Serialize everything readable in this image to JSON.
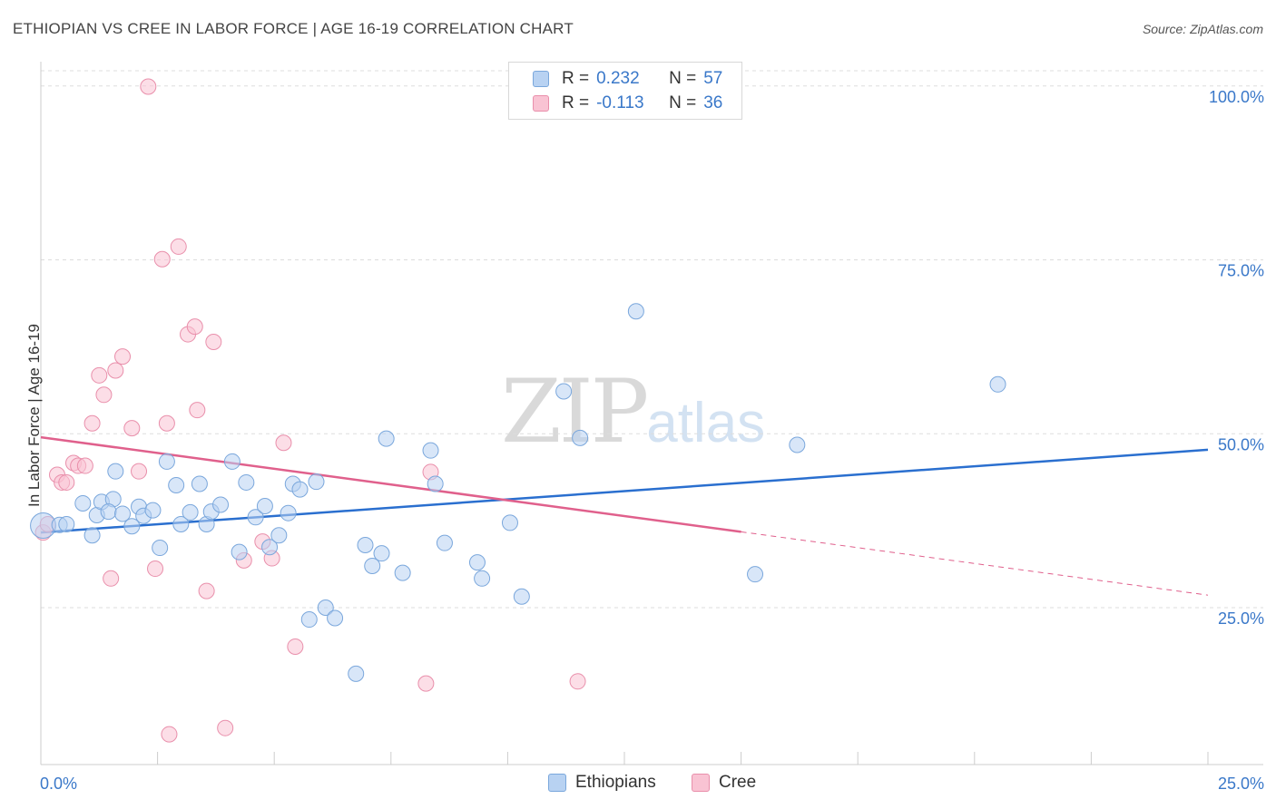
{
  "header": {
    "title": "ETHIOPIAN VS CREE IN LABOR FORCE | AGE 16-19 CORRELATION CHART",
    "source": "Source: ZipAtlas.com"
  },
  "watermark": {
    "zip": "ZIP",
    "atlas": "atlas"
  },
  "colors": {
    "ethiopians_fill": "#b8d2f2",
    "ethiopians_stroke": "#7aa7dc",
    "ethiopians_line": "#2a6fcf",
    "cree_fill": "#f9c3d3",
    "cree_stroke": "#e98fab",
    "cree_line": "#e0608c",
    "axis_text": "#3a78c9",
    "grid": "#dddddd"
  },
  "legend": {
    "rows": [
      {
        "r_label": "R =",
        "r_value": "0.232",
        "n_label": "N =",
        "n_value": "57"
      },
      {
        "r_label": "R =",
        "r_value": "-0.113",
        "n_label": "N =",
        "n_value": "36"
      }
    ]
  },
  "bottom_legend": {
    "series1": "Ethiopians",
    "series2": "Cree"
  },
  "chart_data": {
    "type": "scatter",
    "title": "ETHIOPIAN VS CREE IN LABOR FORCE | AGE 16-19 CORRELATION CHART",
    "xlabel": "",
    "ylabel": "In Labor Force | Age 16-19",
    "xlim": [
      0,
      25
    ],
    "ylim": [
      3,
      102
    ],
    "x_tick_labels": [
      "0.0%",
      "25.0%"
    ],
    "y_ticks": [
      25,
      50,
      75,
      100
    ],
    "y_tick_labels": [
      "25.0%",
      "50.0%",
      "75.0%",
      "100.0%"
    ],
    "grid": true,
    "legend_position": "top-center",
    "series": [
      {
        "name": "Ethiopians",
        "points": [
          [
            0.05,
            36.8
          ],
          [
            0.4,
            36.9
          ],
          [
            0.55,
            37.0
          ],
          [
            0.9,
            40.0
          ],
          [
            1.1,
            35.4
          ],
          [
            1.2,
            38.3
          ],
          [
            1.3,
            40.2
          ],
          [
            1.55,
            40.6
          ],
          [
            1.45,
            38.8
          ],
          [
            1.6,
            44.6
          ],
          [
            1.75,
            38.5
          ],
          [
            1.95,
            36.7
          ],
          [
            2.1,
            39.5
          ],
          [
            2.2,
            38.2
          ],
          [
            2.4,
            39.0
          ],
          [
            2.55,
            33.6
          ],
          [
            2.7,
            46.0
          ],
          [
            2.9,
            42.6
          ],
          [
            3.0,
            37.0
          ],
          [
            3.2,
            38.7
          ],
          [
            3.4,
            42.8
          ],
          [
            3.55,
            37.0
          ],
          [
            3.65,
            38.8
          ],
          [
            3.85,
            39.8
          ],
          [
            4.1,
            46.0
          ],
          [
            4.25,
            33.0
          ],
          [
            4.4,
            43.0
          ],
          [
            4.6,
            38.0
          ],
          [
            4.8,
            39.6
          ],
          [
            4.9,
            33.7
          ],
          [
            5.1,
            35.4
          ],
          [
            5.3,
            38.6
          ],
          [
            5.4,
            42.8
          ],
          [
            5.55,
            42.0
          ],
          [
            5.75,
            23.3
          ],
          [
            5.9,
            43.1
          ],
          [
            6.1,
            25.0
          ],
          [
            6.3,
            23.5
          ],
          [
            6.75,
            15.5
          ],
          [
            6.95,
            34.0
          ],
          [
            7.1,
            31.0
          ],
          [
            7.3,
            32.8
          ],
          [
            7.4,
            49.3
          ],
          [
            7.75,
            30.0
          ],
          [
            8.35,
            47.6
          ],
          [
            8.45,
            42.8
          ],
          [
            8.65,
            34.3
          ],
          [
            9.35,
            31.5
          ],
          [
            9.45,
            29.2
          ],
          [
            10.05,
            37.2
          ],
          [
            10.3,
            26.6
          ],
          [
            11.2,
            56.1
          ],
          [
            11.55,
            49.4
          ],
          [
            12.75,
            67.6
          ],
          [
            15.3,
            29.8
          ],
          [
            16.2,
            48.4
          ],
          [
            20.5,
            57.1
          ]
        ]
      },
      {
        "name": "Cree",
        "points": [
          [
            0.05,
            35.8
          ],
          [
            0.15,
            37.0
          ],
          [
            0.35,
            44.1
          ],
          [
            0.45,
            43.0
          ],
          [
            0.55,
            43.0
          ],
          [
            0.7,
            45.8
          ],
          [
            0.8,
            45.4
          ],
          [
            0.95,
            45.4
          ],
          [
            1.1,
            51.5
          ],
          [
            1.25,
            58.4
          ],
          [
            1.35,
            55.6
          ],
          [
            1.5,
            29.2
          ],
          [
            1.6,
            59.1
          ],
          [
            1.75,
            61.1
          ],
          [
            1.95,
            50.8
          ],
          [
            2.1,
            44.6
          ],
          [
            2.3,
            99.9
          ],
          [
            2.45,
            30.6
          ],
          [
            2.6,
            75.1
          ],
          [
            2.7,
            51.5
          ],
          [
            2.75,
            6.8
          ],
          [
            2.95,
            76.9
          ],
          [
            3.15,
            64.3
          ],
          [
            3.3,
            65.4
          ],
          [
            3.35,
            53.4
          ],
          [
            3.55,
            27.4
          ],
          [
            3.7,
            63.2
          ],
          [
            3.95,
            7.7
          ],
          [
            4.35,
            31.8
          ],
          [
            4.75,
            34.5
          ],
          [
            4.95,
            32.1
          ],
          [
            5.2,
            48.7
          ],
          [
            5.45,
            19.4
          ],
          [
            8.25,
            14.1
          ],
          [
            8.35,
            44.5
          ],
          [
            11.5,
            14.4
          ]
        ]
      }
    ],
    "trend_lines": [
      {
        "series": "Ethiopians",
        "x": [
          0,
          25
        ],
        "y": [
          35.8,
          47.7
        ]
      },
      {
        "series": "Cree",
        "x": [
          0,
          15
        ],
        "y": [
          49.5,
          35.9
        ],
        "extension": {
          "x": [
            15,
            25
          ],
          "y": [
            35.9,
            26.8
          ]
        }
      }
    ]
  }
}
